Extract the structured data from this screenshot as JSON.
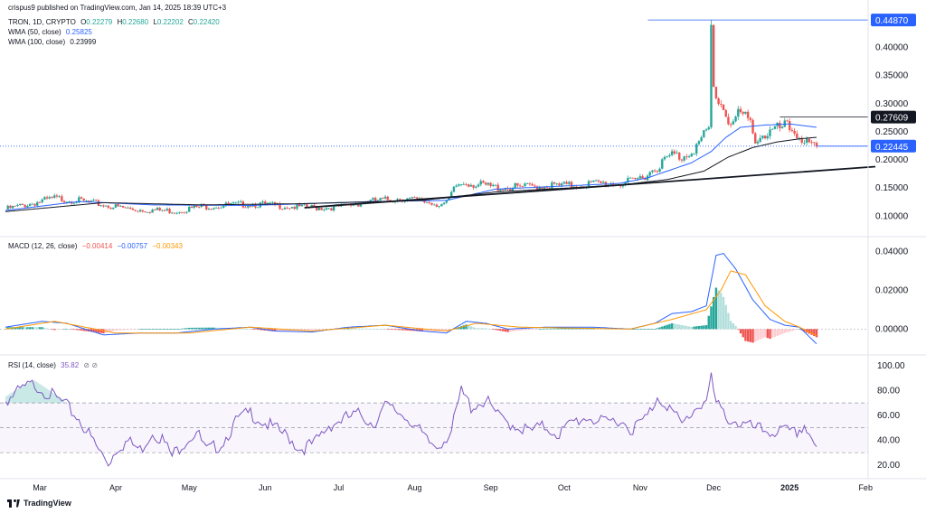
{
  "publisher": "crispus9 published on TradingView.com, Jan 14, 2025 18:39 UTC+3",
  "branding": "TradingView",
  "header": {
    "symbol": "TRON, 1D, CRYPTO",
    "ohlc": {
      "o_label": "O",
      "o": "0.22279",
      "h_label": "H",
      "h": "0.22680",
      "l_label": "L",
      "l": "0.22202",
      "c_label": "C",
      "c": "0.22420"
    },
    "wma50_label": "WMA (50, close)",
    "wma50_value": "0.25825",
    "wma100_label": "WMA (100, close)",
    "wma100_value": "0.23999"
  },
  "macd_header": {
    "label": "MACD (12, 26, close)",
    "hist": "−0.00414",
    "macd": "−0.00757",
    "signal": "−0.00343"
  },
  "rsi_header": {
    "label": "RSI (14, close)",
    "value": "35.82"
  },
  "currency": "USD",
  "colors": {
    "up": "#26a69a",
    "down": "#ef5350",
    "wma50": "#2962ff",
    "wma100": "#131722",
    "macd": "#2962ff",
    "signal": "#ff9800",
    "rsi": "#7e57c2",
    "price_tag": "#2962ff"
  },
  "chart_data": [
    {
      "type": "candlestick",
      "title": "TRON, 1D, CRYPTO",
      "x": [
        "2024-02-15",
        "2025-01-14"
      ],
      "x_ticks": [
        "Mar",
        "Apr",
        "May",
        "Jun",
        "Jul",
        "Aug",
        "Sep",
        "Oct",
        "Nov",
        "Dec",
        "2025",
        "Feb"
      ],
      "y_ticks": [
        "0.10000",
        "0.15000",
        "0.20000",
        "0.25000",
        "0.30000",
        "0.35000",
        "0.40000"
      ],
      "ylim": [
        0.07,
        0.465
      ],
      "price_levels": [
        {
          "label": "0.44870",
          "value": 0.4487,
          "style": "blue"
        },
        {
          "label": "0.27609",
          "value": 0.27609,
          "style": "black"
        },
        {
          "label": "0.22445",
          "value": 0.22445,
          "style": "blue"
        }
      ],
      "price_anchors": [
        [
          0,
          0.115
        ],
        [
          10,
          0.125
        ],
        [
          20,
          0.135
        ],
        [
          28,
          0.132
        ],
        [
          36,
          0.126
        ],
        [
          44,
          0.12
        ],
        [
          52,
          0.115
        ],
        [
          62,
          0.113
        ],
        [
          70,
          0.112
        ],
        [
          80,
          0.12
        ],
        [
          90,
          0.122
        ],
        [
          100,
          0.125
        ],
        [
          110,
          0.122
        ],
        [
          120,
          0.119
        ],
        [
          130,
          0.118
        ],
        [
          138,
          0.12
        ],
        [
          146,
          0.128
        ],
        [
          155,
          0.132
        ],
        [
          162,
          0.135
        ],
        [
          170,
          0.13
        ],
        [
          176,
          0.125
        ],
        [
          180,
          0.125
        ],
        [
          184,
          0.158
        ],
        [
          188,
          0.165
        ],
        [
          192,
          0.16
        ],
        [
          200,
          0.155
        ],
        [
          210,
          0.155
        ],
        [
          220,
          0.158
        ],
        [
          230,
          0.158
        ],
        [
          240,
          0.162
        ],
        [
          250,
          0.162
        ],
        [
          256,
          0.165
        ],
        [
          262,
          0.18
        ],
        [
          268,
          0.2
        ],
        [
          272,
          0.215
        ],
        [
          276,
          0.21
        ],
        [
          282,
          0.23
        ],
        [
          287,
          0.26
        ],
        [
          288,
          0.44
        ],
        [
          289,
          0.33
        ],
        [
          293,
          0.3
        ],
        [
          296,
          0.27
        ],
        [
          300,
          0.29
        ],
        [
          304,
          0.27
        ],
        [
          306,
          0.245
        ],
        [
          312,
          0.255
        ],
        [
          318,
          0.265
        ],
        [
          320,
          0.262
        ],
        [
          324,
          0.25
        ],
        [
          328,
          0.23
        ],
        [
          331,
          0.224
        ]
      ],
      "wma50_anchors": [
        [
          0,
          0.11
        ],
        [
          30,
          0.126
        ],
        [
          60,
          0.12
        ],
        [
          100,
          0.119
        ],
        [
          150,
          0.126
        ],
        [
          180,
          0.128
        ],
        [
          200,
          0.148
        ],
        [
          250,
          0.158
        ],
        [
          262,
          0.168
        ],
        [
          280,
          0.195
        ],
        [
          288,
          0.215
        ],
        [
          294,
          0.24
        ],
        [
          300,
          0.258
        ],
        [
          310,
          0.262
        ],
        [
          320,
          0.264
        ],
        [
          331,
          0.258
        ]
      ],
      "wma100_anchors": [
        [
          0,
          0.108
        ],
        [
          40,
          0.124
        ],
        [
          80,
          0.12
        ],
        [
          120,
          0.122
        ],
        [
          170,
          0.128
        ],
        [
          200,
          0.143
        ],
        [
          250,
          0.155
        ],
        [
          270,
          0.165
        ],
        [
          285,
          0.18
        ],
        [
          295,
          0.205
        ],
        [
          305,
          0.222
        ],
        [
          315,
          0.232
        ],
        [
          325,
          0.238
        ],
        [
          331,
          0.24
        ]
      ],
      "trendline": {
        "from": [
          122,
          0.115
        ],
        "to": [
          355,
          0.188
        ]
      },
      "days": 331
    },
    {
      "type": "line",
      "title": "MACD (12, 26, close)",
      "y_ticks": [
        "0.04000",
        "0.02000",
        "0.00000"
      ],
      "ylim": [
        -0.011,
        0.043
      ],
      "macd_anchors": [
        [
          0,
          0.001
        ],
        [
          15,
          0.004
        ],
        [
          25,
          0.003
        ],
        [
          40,
          -0.003
        ],
        [
          55,
          -0.002
        ],
        [
          70,
          -0.002
        ],
        [
          85,
          0.0
        ],
        [
          100,
          0.001
        ],
        [
          110,
          -0.001
        ],
        [
          125,
          -0.0015
        ],
        [
          140,
          0.001
        ],
        [
          155,
          0.002
        ],
        [
          170,
          -0.001
        ],
        [
          180,
          -0.002
        ],
        [
          188,
          0.004
        ],
        [
          196,
          0.003
        ],
        [
          205,
          0.0
        ],
        [
          220,
          0.001
        ],
        [
          240,
          0.001
        ],
        [
          255,
          0.0
        ],
        [
          265,
          0.003
        ],
        [
          272,
          0.008
        ],
        [
          280,
          0.009
        ],
        [
          286,
          0.012
        ],
        [
          290,
          0.038
        ],
        [
          293,
          0.039
        ],
        [
          298,
          0.031
        ],
        [
          305,
          0.015
        ],
        [
          312,
          0.005
        ],
        [
          318,
          0.002
        ],
        [
          324,
          0.001
        ],
        [
          331,
          -0.0076
        ]
      ],
      "signal_anchors": [
        [
          0,
          0.0
        ],
        [
          20,
          0.004
        ],
        [
          45,
          -0.002
        ],
        [
          75,
          -0.002
        ],
        [
          100,
          0.001
        ],
        [
          125,
          -0.001
        ],
        [
          155,
          0.002
        ],
        [
          180,
          -0.001
        ],
        [
          192,
          0.003
        ],
        [
          210,
          0.001
        ],
        [
          255,
          0.0
        ],
        [
          272,
          0.005
        ],
        [
          286,
          0.01
        ],
        [
          292,
          0.02
        ],
        [
          296,
          0.03
        ],
        [
          302,
          0.028
        ],
        [
          310,
          0.012
        ],
        [
          318,
          0.004
        ],
        [
          324,
          0.001
        ],
        [
          331,
          -0.0034
        ]
      ]
    },
    {
      "type": "line",
      "title": "RSI (14, close)",
      "y_ticks": [
        "100.00",
        "80.00",
        "60.00",
        "40.00",
        "20.00"
      ],
      "ylim": [
        12,
        102
      ],
      "levels": [
        70,
        50,
        30
      ],
      "rsi_anchors": [
        [
          0,
          75
        ],
        [
          8,
          85
        ],
        [
          12,
          88
        ],
        [
          18,
          80
        ],
        [
          24,
          72
        ],
        [
          30,
          60
        ],
        [
          34,
          48
        ],
        [
          38,
          35
        ],
        [
          42,
          25
        ],
        [
          46,
          38
        ],
        [
          50,
          42
        ],
        [
          55,
          35
        ],
        [
          60,
          50
        ],
        [
          64,
          44
        ],
        [
          68,
          30
        ],
        [
          72,
          40
        ],
        [
          78,
          50
        ],
        [
          82,
          34
        ],
        [
          88,
          40
        ],
        [
          95,
          60
        ],
        [
          100,
          65
        ],
        [
          105,
          58
        ],
        [
          110,
          52
        ],
        [
          116,
          45
        ],
        [
          120,
          36
        ],
        [
          126,
          40
        ],
        [
          132,
          55
        ],
        [
          138,
          60
        ],
        [
          145,
          64
        ],
        [
          150,
          56
        ],
        [
          155,
          70
        ],
        [
          160,
          66
        ],
        [
          165,
          60
        ],
        [
          172,
          42
        ],
        [
          176,
          38
        ],
        [
          182,
          50
        ],
        [
          186,
          82
        ],
        [
          190,
          70
        ],
        [
          196,
          75
        ],
        [
          202,
          60
        ],
        [
          208,
          55
        ],
        [
          214,
          50
        ],
        [
          220,
          54
        ],
        [
          226,
          48
        ],
        [
          232,
          58
        ],
        [
          238,
          62
        ],
        [
          244,
          56
        ],
        [
          250,
          60
        ],
        [
          256,
          52
        ],
        [
          262,
          62
        ],
        [
          266,
          78
        ],
        [
          270,
          72
        ],
        [
          276,
          55
        ],
        [
          282,
          70
        ],
        [
          286,
          75
        ],
        [
          288,
          92
        ],
        [
          290,
          72
        ],
        [
          294,
          62
        ],
        [
          300,
          56
        ],
        [
          306,
          52
        ],
        [
          312,
          50
        ],
        [
          318,
          50
        ],
        [
          322,
          48
        ],
        [
          326,
          55
        ],
        [
          330,
          42
        ],
        [
          331,
          36
        ]
      ]
    }
  ]
}
